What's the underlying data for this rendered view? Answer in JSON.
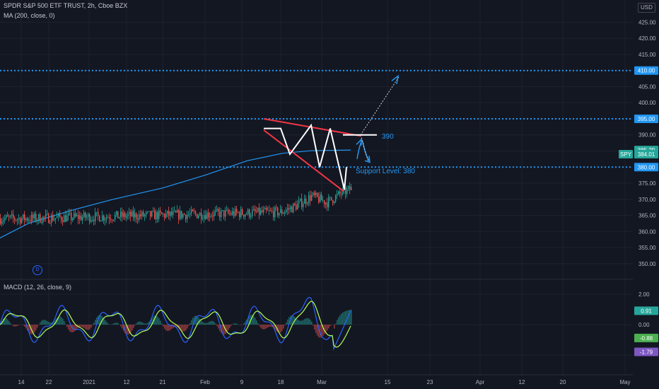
{
  "legend": {
    "symbol": "SPDR S&P 500 ETF TRUST, 2h, Cboe BZX",
    "ma": "MA (200, close, 0)",
    "macd": "MACD (12, 26, close, 9)"
  },
  "currency": "USD",
  "marker_d": "D",
  "colors": {
    "background": "#131722",
    "up": "#26a69a",
    "down": "#ef5350",
    "ma": "#2196f3",
    "level": "#2196f3",
    "macd": "#2962ff",
    "signal": "#b2ff59",
    "pattern": "#f23645"
  },
  "chart_data": [
    {
      "type": "candlestick",
      "symbol": "SPY",
      "y_axis": {
        "ticks": [
          425,
          420,
          415,
          410,
          405,
          400,
          395,
          390,
          385,
          380,
          375,
          370,
          365,
          360,
          355,
          350
        ],
        "tick_labels": [
          "425.00",
          "420.00",
          "415.00",
          "410.00",
          "405.00",
          "400.00",
          "395.00",
          "390.00",
          "385.00",
          "380.00",
          "375.00",
          "370.00",
          "365.00",
          "360.00",
          "355.00",
          "350.00"
        ]
      },
      "x_axis": {
        "tick_labels": [
          "14",
          "22",
          "2021",
          "12",
          "21",
          "Feb",
          "9",
          "18",
          "Mar",
          "15",
          "23",
          "Apr",
          "12",
          "20",
          "May"
        ]
      },
      "price_path": [
        [
          "14",
          364
        ],
        [
          "18",
          366
        ],
        [
          "22",
          368
        ],
        [
          "25",
          371
        ],
        [
          "28",
          369
        ],
        [
          "2021",
          372
        ],
        [
          "6",
          374
        ],
        [
          "12",
          377
        ],
        [
          "15",
          377
        ],
        [
          "21",
          381
        ],
        [
          "25",
          383
        ],
        [
          "28",
          375
        ],
        [
          "Feb",
          372
        ],
        [
          "4",
          381
        ],
        [
          "9",
          388
        ],
        [
          "12",
          391
        ],
        [
          "16",
          393
        ],
        [
          "18",
          392
        ],
        [
          "23",
          387
        ],
        [
          "26",
          383
        ],
        [
          "Mar",
          381
        ],
        [
          "4",
          379
        ],
        [
          "5",
          373
        ],
        [
          "8",
          378
        ],
        [
          "9",
          384
        ]
      ],
      "ma_label": "MA (200, close, 0)",
      "levels": [
        {
          "label": "410.00",
          "value": 410
        },
        {
          "label": "395.00",
          "value": 395
        },
        {
          "label": "380.00",
          "value": 380
        }
      ],
      "badges": [
        {
          "label": "385.29",
          "value": 385.29
        },
        {
          "label": "SPY",
          "sublabel": "384.01",
          "value": 384.01
        }
      ],
      "annotations": [
        {
          "text": "390",
          "value": 390
        },
        {
          "text": "Support Level: 380",
          "value": 380
        }
      ]
    },
    {
      "type": "line",
      "title": "MACD (12, 26, close, 9)",
      "y_axis": {
        "tick_labels": [
          "2.00",
          "0.00"
        ],
        "ticks": [
          2,
          0
        ]
      },
      "series": [
        {
          "role": "macd",
          "last": 0.91
        },
        {
          "role": "signal",
          "last": -1.79
        },
        {
          "role": "histogram",
          "last": -0.88
        }
      ],
      "value_badges": [
        "0.91",
        "-0.88",
        "-1.79"
      ]
    }
  ]
}
